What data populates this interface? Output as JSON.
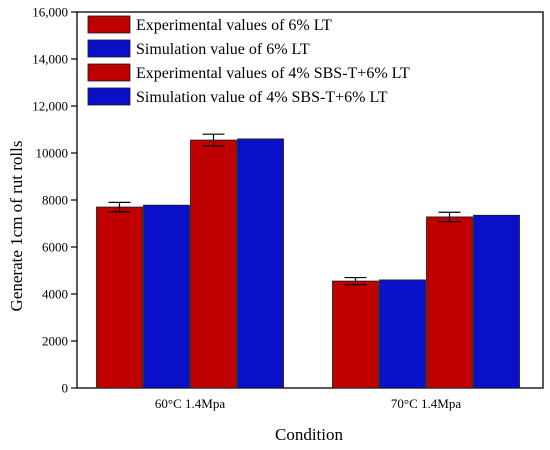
{
  "chart_data": {
    "type": "bar",
    "title": "",
    "xlabel": "Condition",
    "ylabel": "Generate 1cm of rut rolls",
    "ylim": [
      0,
      16000
    ],
    "yticks": [
      0,
      2000,
      4000,
      6000,
      8000,
      10000,
      12000,
      14000,
      16000
    ],
    "ytick_labels": [
      "0",
      "2000",
      "4000",
      "6000",
      "8000",
      "10000",
      "12,000",
      "14,000",
      "16,000"
    ],
    "categories": [
      "60°C 1.4Mpa",
      "70°C 1.4Mpa"
    ],
    "series": [
      {
        "name": "Experimental values of  6% LT",
        "values": [
          7700,
          4550
        ],
        "error": [
          200,
          150
        ],
        "color": "#c00000"
      },
      {
        "name": "Simulation value of  6% LT",
        "values": [
          7780,
          4600
        ],
        "error": null,
        "color": "#0a10c8"
      },
      {
        "name": "Experimental values of  4% SBS-T+6% LT",
        "values": [
          10550,
          7280
        ],
        "error": [
          250,
          200
        ],
        "color": "#c00000"
      },
      {
        "name": "Simulation value of  4% SBS-T+6% LT",
        "values": [
          10600,
          7350
        ],
        "error": null,
        "color": "#0a10c8"
      }
    ],
    "grid": false,
    "legend_position": "top-left"
  }
}
